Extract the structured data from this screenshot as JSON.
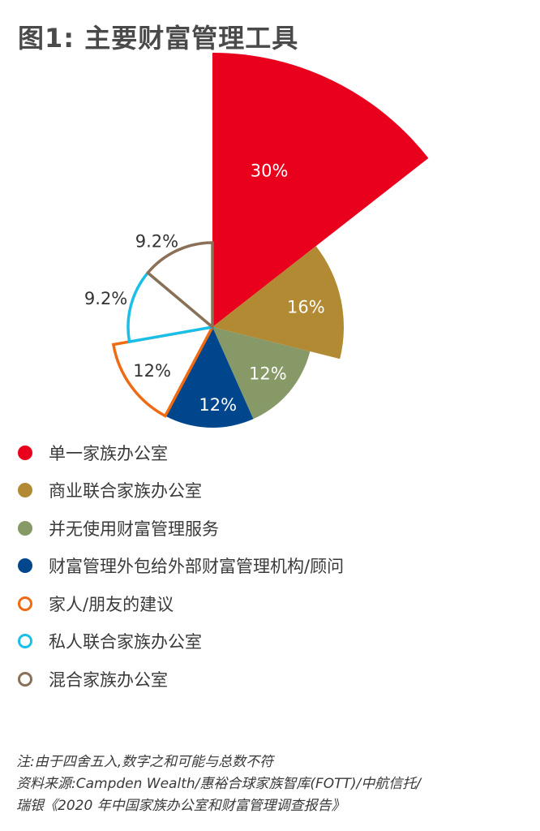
{
  "title": "图1: 主要财富管理工具",
  "chart_data": {
    "type": "pie",
    "variant": "polar-area",
    "slices": [
      {
        "label": "单一家族办公室",
        "value": 30,
        "display": "30%",
        "color": "#e8001c",
        "style": "filled",
        "label_color": "#ffffff"
      },
      {
        "label": "商业联合家族办公室",
        "value": 16,
        "display": "16%",
        "color": "#b28a33",
        "style": "filled",
        "label_color": "#ffffff"
      },
      {
        "label": "并无使用财富管理服务",
        "value": 12,
        "display": "12%",
        "color": "#869966",
        "style": "filled",
        "label_color": "#ffffff"
      },
      {
        "label": "财富管理外包给外部财富管理机构/顾问",
        "value": 12,
        "display": "12%",
        "color": "#00468c",
        "style": "filled",
        "label_color": "#ffffff"
      },
      {
        "label": "家人/朋友的建议",
        "value": 12,
        "display": "12%",
        "color": "#ee6a13",
        "style": "outline",
        "label_color": "#333333"
      },
      {
        "label": "私人联合家族办公室",
        "value": 9.2,
        "display": "9.2%",
        "color": "#19bfe9",
        "style": "outline",
        "label_color": "#333333"
      },
      {
        "label": "混合家族办公室",
        "value": 9.2,
        "display": "9.2%",
        "color": "#8a7056",
        "style": "outline",
        "label_color": "#333333"
      }
    ]
  },
  "notes": {
    "line1": "注:由于四舍五入,数字之和可能与总数不符",
    "line2": "资料来源:Campden Wealth/惠裕合球家族智库(FOTT)/中航信托/",
    "line3": "瑞银《2020 年中国家族办公室和财富管理调查报告》"
  }
}
